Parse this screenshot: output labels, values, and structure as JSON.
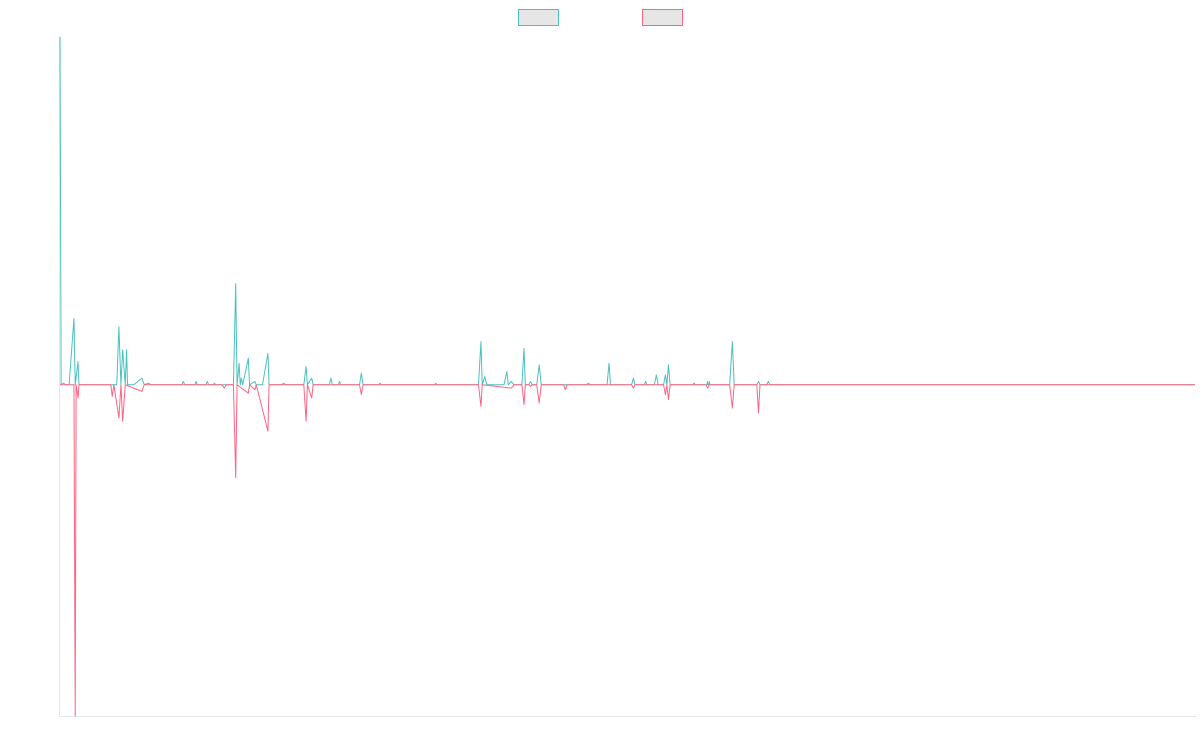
{
  "chart_data": {
    "type": "line",
    "title": "",
    "xlabel": "",
    "ylabel": "",
    "grid": false,
    "legend_position": "top-center",
    "ylim": [
      -100,
      105
    ],
    "xlim": [
      0,
      1000
    ],
    "series": [
      {
        "color": "#4bc0c0",
        "fill": "#e6e6e6",
        "points": [
          [
            0,
            105
          ],
          [
            1,
            0
          ],
          [
            3,
            0.5
          ],
          [
            5,
            0
          ],
          [
            8,
            0
          ],
          [
            12.3,
            20
          ],
          [
            13.4,
            0
          ],
          [
            15.9,
            7
          ],
          [
            16.7,
            0
          ],
          [
            50,
            0
          ],
          [
            51.9,
            17.5
          ],
          [
            53.7,
            0
          ],
          [
            55.2,
            10.5
          ],
          [
            57.5,
            0
          ],
          [
            58.7,
            10.5
          ],
          [
            59.5,
            0
          ],
          [
            65,
            0
          ],
          [
            72.2,
            2
          ],
          [
            74.2,
            0
          ],
          [
            78.3,
            0.5
          ],
          [
            80,
            0
          ],
          [
            107.4,
            0
          ],
          [
            108.6,
            1
          ],
          [
            110,
            0
          ],
          [
            118.8,
            0
          ],
          [
            119.9,
            1
          ],
          [
            121,
            0
          ],
          [
            128.7,
            0
          ],
          [
            129.8,
            1
          ],
          [
            131,
            0
          ],
          [
            135,
            0
          ],
          [
            136.1,
            0.5
          ],
          [
            137,
            0
          ],
          [
            152.8,
            0
          ],
          [
            154.8,
            30.5
          ],
          [
            156,
            0
          ],
          [
            157.8,
            6.5
          ],
          [
            158.8,
            0
          ],
          [
            159.8,
            2
          ],
          [
            161,
            0
          ],
          [
            165.9,
            8
          ],
          [
            167,
            0
          ],
          [
            171.7,
            1
          ],
          [
            172.9,
            0
          ],
          [
            178.4,
            0
          ],
          [
            183.2,
            9.5
          ],
          [
            184.2,
            0
          ],
          [
            195,
            0
          ],
          [
            197.3,
            0.5
          ],
          [
            198.5,
            0
          ],
          [
            214.8,
            0
          ],
          [
            216.8,
            5.5
          ],
          [
            218,
            0
          ],
          [
            221.8,
            2
          ],
          [
            223,
            0
          ],
          [
            237.3,
            0
          ],
          [
            238.7,
            2
          ],
          [
            240,
            0
          ],
          [
            245.2,
            0
          ],
          [
            246.3,
            1
          ],
          [
            247.3,
            0
          ],
          [
            263.9,
            0
          ],
          [
            265.5,
            3.5
          ],
          [
            267,
            0
          ],
          [
            280.7,
            0
          ],
          [
            282,
            0.5
          ],
          [
            283,
            0
          ],
          [
            330,
            0
          ],
          [
            331.1,
            0.5
          ],
          [
            332,
            0
          ],
          [
            368.7,
            0
          ],
          [
            370.9,
            13
          ],
          [
            372,
            0
          ],
          [
            374.3,
            2.5
          ],
          [
            376,
            0
          ],
          [
            391.2,
            0
          ],
          [
            393.7,
            4
          ],
          [
            395,
            0
          ],
          [
            397.6,
            1
          ],
          [
            400,
            0
          ],
          [
            407,
            0
          ],
          [
            408.8,
            11
          ],
          [
            410,
            0
          ],
          [
            413,
            0
          ],
          [
            414.7,
            1
          ],
          [
            416,
            0
          ],
          [
            420,
            0
          ],
          [
            422.2,
            6
          ],
          [
            424,
            0
          ],
          [
            464,
            0
          ],
          [
            465.5,
            0.5
          ],
          [
            467,
            0
          ],
          [
            482,
            0
          ],
          [
            483.7,
            6.5
          ],
          [
            485,
            0
          ],
          [
            503.6,
            0
          ],
          [
            505.2,
            2
          ],
          [
            506.5,
            0
          ],
          [
            514.8,
            0
          ],
          [
            516.1,
            1
          ],
          [
            517,
            0
          ],
          [
            523.7,
            0
          ],
          [
            525.4,
            3
          ],
          [
            527,
            0
          ],
          [
            531.8,
            0
          ],
          [
            533.4,
            3
          ],
          [
            534.7,
            0
          ],
          [
            536.1,
            6
          ],
          [
            537.5,
            0
          ],
          [
            557,
            0
          ],
          [
            558.7,
            0.5
          ],
          [
            560,
            0
          ],
          [
            569.2,
            0
          ],
          [
            570.6,
            1
          ],
          [
            572,
            0
          ],
          [
            571,
            0
          ],
          [
            572.2,
            0.5
          ],
          [
            573,
            0
          ],
          [
            573,
            0
          ],
          [
            574.5,
            0
          ],
          [
            575,
            0
          ],
          [
            570,
            0
          ],
          [
            572,
            1
          ],
          [
            574,
            0
          ],
          [
            590,
            0
          ],
          [
            592.4,
            13
          ],
          [
            594,
            0
          ],
          [
            613.9,
            0
          ],
          [
            615.4,
            1
          ],
          [
            616.7,
            0
          ],
          [
            622.6,
            0
          ],
          [
            624.1,
            1
          ],
          [
            625.5,
            0
          ],
          [
            1000,
            0
          ]
        ]
      },
      {
        "color": "#ff6384",
        "fill": "#e6e6e6",
        "points": [
          [
            0,
            0
          ],
          [
            8,
            0
          ],
          [
            12.3,
            0
          ],
          [
            13.4,
            -100
          ],
          [
            14.2,
            0
          ],
          [
            15.9,
            -4
          ],
          [
            16.7,
            0
          ],
          [
            44.8,
            0
          ],
          [
            46,
            -3.5
          ],
          [
            47.5,
            0
          ],
          [
            51.9,
            -10
          ],
          [
            53.7,
            0
          ],
          [
            55.2,
            -11
          ],
          [
            57.5,
            0
          ],
          [
            72.2,
            -2
          ],
          [
            74.2,
            0
          ],
          [
            142.7,
            0
          ],
          [
            144.7,
            -1
          ],
          [
            146.5,
            0
          ],
          [
            152.8,
            0
          ],
          [
            154.8,
            -28
          ],
          [
            156,
            0
          ],
          [
            165.9,
            -2.5
          ],
          [
            167,
            0
          ],
          [
            171.7,
            -1.5
          ],
          [
            172.9,
            0
          ],
          [
            183.2,
            -14
          ],
          [
            184.2,
            0
          ],
          [
            214.8,
            0
          ],
          [
            216.8,
            -11
          ],
          [
            218,
            0
          ],
          [
            221.8,
            -4
          ],
          [
            223,
            0
          ],
          [
            263.9,
            0
          ],
          [
            265.5,
            -3
          ],
          [
            267,
            0
          ],
          [
            368.7,
            0
          ],
          [
            370.9,
            -6.5
          ],
          [
            372,
            0
          ],
          [
            397.6,
            -1
          ],
          [
            400,
            0
          ],
          [
            407,
            0
          ],
          [
            408.8,
            -6
          ],
          [
            410,
            0
          ],
          [
            413,
            0
          ],
          [
            414.7,
            -0.5
          ],
          [
            416,
            0
          ],
          [
            420,
            0
          ],
          [
            422.2,
            -5.5
          ],
          [
            424,
            0
          ],
          [
            443.8,
            0
          ],
          [
            445.3,
            -1.5
          ],
          [
            446.8,
            0
          ],
          [
            503.6,
            0
          ],
          [
            505.2,
            -1
          ],
          [
            506.5,
            0
          ],
          [
            531.8,
            0
          ],
          [
            533.4,
            -3
          ],
          [
            534.7,
            0
          ],
          [
            536.1,
            -4.5
          ],
          [
            537.5,
            0
          ],
          [
            569.2,
            0
          ],
          [
            570.6,
            -1
          ],
          [
            572,
            0
          ],
          [
            590,
            0
          ],
          [
            592.4,
            -7
          ],
          [
            594,
            0
          ],
          [
            613.9,
            0
          ],
          [
            615.4,
            -8.5
          ],
          [
            616.7,
            0
          ],
          [
            1000,
            0
          ]
        ]
      }
    ]
  }
}
